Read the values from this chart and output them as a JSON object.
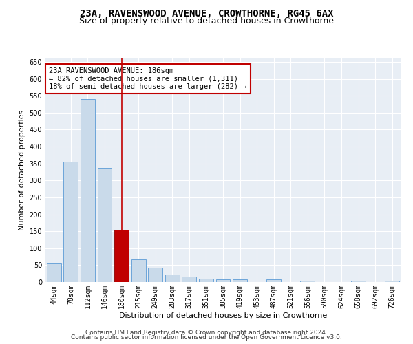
{
  "title1": "23A, RAVENSWOOD AVENUE, CROWTHORNE, RG45 6AX",
  "title2": "Size of property relative to detached houses in Crowthorne",
  "xlabel": "Distribution of detached houses by size in Crowthorne",
  "ylabel": "Number of detached properties",
  "footer1": "Contains HM Land Registry data © Crown copyright and database right 2024.",
  "footer2": "Contains public sector information licensed under the Open Government Licence v3.0.",
  "annotation_line1": "23A RAVENSWOOD AVENUE: 186sqm",
  "annotation_line2": "← 82% of detached houses are smaller (1,311)",
  "annotation_line3": "18% of semi-detached houses are larger (282) →",
  "bar_color": "#c9daea",
  "bar_edge_color": "#5b9bd5",
  "highlight_bar_color": "#c00000",
  "highlight_bar_edge_color": "#8b0000",
  "highlight_index": 4,
  "annotation_box_color": "#c00000",
  "vline_color": "#c00000",
  "categories": [
    "44sqm",
    "78sqm",
    "112sqm",
    "146sqm",
    "180sqm",
    "215sqm",
    "249sqm",
    "283sqm",
    "317sqm",
    "351sqm",
    "385sqm",
    "419sqm",
    "453sqm",
    "487sqm",
    "521sqm",
    "556sqm",
    "590sqm",
    "624sqm",
    "658sqm",
    "692sqm",
    "726sqm"
  ],
  "values": [
    57,
    355,
    540,
    337,
    155,
    68,
    42,
    22,
    17,
    10,
    9,
    9,
    0,
    9,
    0,
    4,
    0,
    0,
    4,
    0,
    4
  ],
  "ylim": [
    0,
    660
  ],
  "yticks": [
    0,
    50,
    100,
    150,
    200,
    250,
    300,
    350,
    400,
    450,
    500,
    550,
    600,
    650
  ],
  "background_color": "#ffffff",
  "plot_bg_color": "#e8eef5",
  "grid_color": "#ffffff",
  "title_fontsize": 10,
  "subtitle_fontsize": 9,
  "label_fontsize": 8,
  "tick_fontsize": 7,
  "footer_fontsize": 6.5,
  "annotation_fontsize": 7.5
}
